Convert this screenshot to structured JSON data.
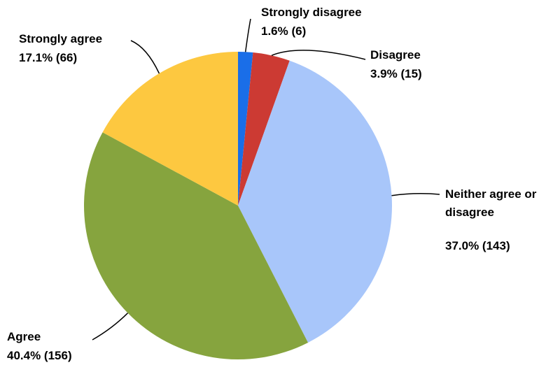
{
  "chart_data": {
    "type": "pie",
    "title": "",
    "slices": [
      {
        "name": "Strongly disagree",
        "value": 6,
        "percent_label": "1.6% (6)",
        "color": "#1a6ee8"
      },
      {
        "name": "Disagree",
        "value": 15,
        "percent_label": "3.9% (15)",
        "color": "#cc3a33"
      },
      {
        "name": "Neither agree or disagree",
        "name_lines": [
          "Neither agree or",
          "disagree"
        ],
        "value": 143,
        "percent_label": "37.0% (143)",
        "color": "#a8c6fa"
      },
      {
        "name": "Agree",
        "value": 156,
        "percent_label": "40.4% (156)",
        "color": "#86a43e"
      },
      {
        "name": "Strongly agree",
        "value": 66,
        "percent_label": "17.1% (66)",
        "color": "#fdc840"
      }
    ],
    "start": "12 o'clock",
    "direction": "clockwise",
    "legend": "none (direct labels with leader lines)"
  }
}
